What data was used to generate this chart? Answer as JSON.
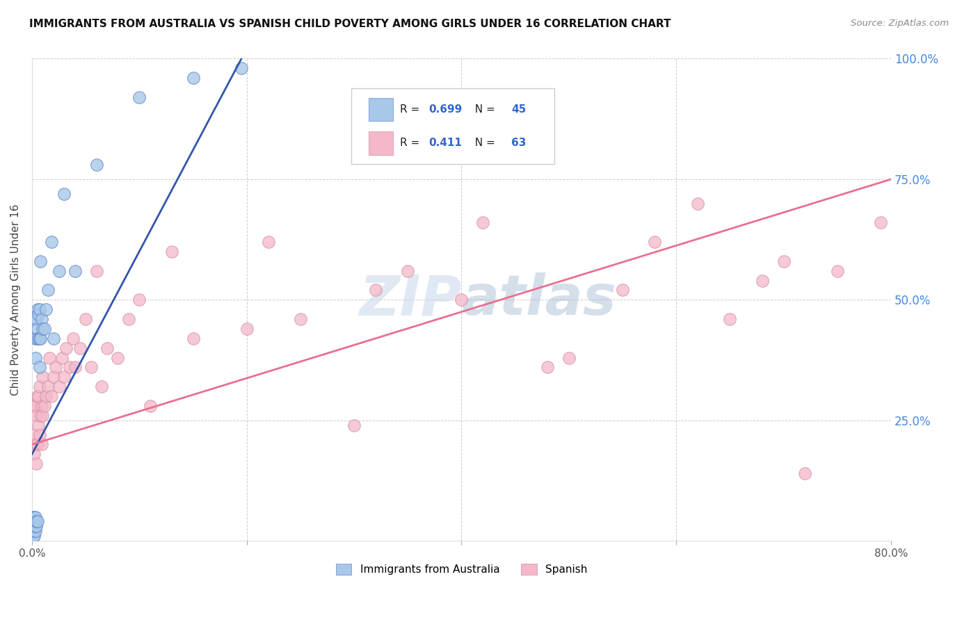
{
  "title": "IMMIGRANTS FROM AUSTRALIA VS SPANISH CHILD POVERTY AMONG GIRLS UNDER 16 CORRELATION CHART",
  "source": "Source: ZipAtlas.com",
  "ylabel": "Child Poverty Among Girls Under 16",
  "legend_label1": "Immigrants from Australia",
  "legend_label2": "Spanish",
  "R1": 0.699,
  "N1": 45,
  "R2": 0.411,
  "N2": 63,
  "xlim": [
    0.0,
    0.8
  ],
  "ylim": [
    0.0,
    1.0
  ],
  "xticks": [
    0.0,
    0.2,
    0.4,
    0.6,
    0.8
  ],
  "xticklabels": [
    "0.0%",
    "",
    "",
    "",
    "80.0%"
  ],
  "yticks": [
    0.0,
    0.25,
    0.5,
    0.75,
    1.0
  ],
  "yticklabels_right": [
    "",
    "25.0%",
    "50.0%",
    "75.0%",
    "100.0%"
  ],
  "color_blue": "#a8c8e8",
  "color_pink": "#f4b8c8",
  "trendline_blue": "#3355aa",
  "trendline_pink": "#e87090",
  "background_color": "#ffffff",
  "watermark": "ZIPatlas",
  "watermark_color": "#c8d8ea",
  "blue_scatter_x": [
    0.001,
    0.001,
    0.001,
    0.001,
    0.001,
    0.002,
    0.002,
    0.002,
    0.002,
    0.002,
    0.003,
    0.003,
    0.003,
    0.003,
    0.003,
    0.003,
    0.003,
    0.004,
    0.004,
    0.004,
    0.004,
    0.005,
    0.005,
    0.005,
    0.006,
    0.006,
    0.007,
    0.007,
    0.007,
    0.008,
    0.008,
    0.009,
    0.01,
    0.012,
    0.013,
    0.015,
    0.018,
    0.02,
    0.025,
    0.03,
    0.04,
    0.06,
    0.1,
    0.15,
    0.195
  ],
  "blue_scatter_y": [
    0.01,
    0.02,
    0.03,
    0.04,
    0.05,
    0.01,
    0.02,
    0.03,
    0.04,
    0.05,
    0.02,
    0.03,
    0.04,
    0.05,
    0.38,
    0.42,
    0.46,
    0.03,
    0.04,
    0.42,
    0.46,
    0.04,
    0.44,
    0.48,
    0.42,
    0.47,
    0.36,
    0.42,
    0.48,
    0.42,
    0.58,
    0.46,
    0.44,
    0.44,
    0.48,
    0.52,
    0.62,
    0.42,
    0.56,
    0.72,
    0.56,
    0.78,
    0.92,
    0.96,
    0.98
  ],
  "pink_scatter_x": [
    0.001,
    0.002,
    0.002,
    0.003,
    0.003,
    0.004,
    0.004,
    0.005,
    0.005,
    0.006,
    0.006,
    0.007,
    0.007,
    0.008,
    0.009,
    0.009,
    0.01,
    0.01,
    0.012,
    0.013,
    0.015,
    0.016,
    0.018,
    0.02,
    0.022,
    0.025,
    0.028,
    0.03,
    0.032,
    0.035,
    0.038,
    0.04,
    0.045,
    0.05,
    0.055,
    0.06,
    0.065,
    0.07,
    0.08,
    0.09,
    0.1,
    0.11,
    0.13,
    0.15,
    0.2,
    0.22,
    0.25,
    0.3,
    0.32,
    0.35,
    0.4,
    0.42,
    0.48,
    0.5,
    0.55,
    0.58,
    0.62,
    0.65,
    0.68,
    0.7,
    0.72,
    0.75,
    0.79
  ],
  "pink_scatter_y": [
    0.22,
    0.18,
    0.28,
    0.2,
    0.28,
    0.16,
    0.26,
    0.2,
    0.3,
    0.24,
    0.3,
    0.22,
    0.32,
    0.26,
    0.2,
    0.28,
    0.26,
    0.34,
    0.28,
    0.3,
    0.32,
    0.38,
    0.3,
    0.34,
    0.36,
    0.32,
    0.38,
    0.34,
    0.4,
    0.36,
    0.42,
    0.36,
    0.4,
    0.46,
    0.36,
    0.56,
    0.32,
    0.4,
    0.38,
    0.46,
    0.5,
    0.28,
    0.6,
    0.42,
    0.44,
    0.62,
    0.46,
    0.24,
    0.52,
    0.56,
    0.5,
    0.66,
    0.36,
    0.38,
    0.52,
    0.62,
    0.7,
    0.46,
    0.54,
    0.58,
    0.14,
    0.56,
    0.66
  ],
  "pink_trendline_x0": 0.0,
  "pink_trendline_y0": 0.2,
  "pink_trendline_x1": 0.8,
  "pink_trendline_y1": 0.75,
  "blue_trendline_x0": 0.0,
  "blue_trendline_y0": 0.18,
  "blue_trendline_x1": 0.195,
  "blue_trendline_y1": 1.0
}
